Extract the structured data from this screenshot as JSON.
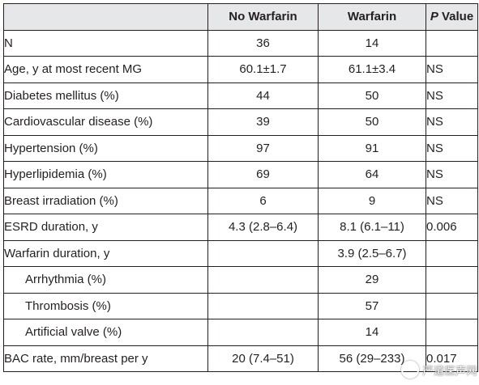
{
  "table": {
    "headers": {
      "col0": "",
      "col1": "No Warfarin",
      "col2": "Warfarin",
      "col3_italic": "P",
      "col3_rest": " Value"
    },
    "rows": [
      {
        "label": "N",
        "no_warfarin": "36",
        "warfarin": "14",
        "p_value": "",
        "indent": false
      },
      {
        "label": "Age, y at most recent MG",
        "no_warfarin": "60.1±1.7",
        "warfarin": "61.1±3.4",
        "p_value": "NS",
        "indent": false
      },
      {
        "label": "Diabetes mellitus (%)",
        "no_warfarin": "44",
        "warfarin": "50",
        "p_value": "NS",
        "indent": false
      },
      {
        "label": "Cardiovascular disease (%)",
        "no_warfarin": "39",
        "warfarin": "50",
        "p_value": "NS",
        "indent": false
      },
      {
        "label": "Hypertension (%)",
        "no_warfarin": "97",
        "warfarin": "91",
        "p_value": "NS",
        "indent": false
      },
      {
        "label": "Hyperlipidemia (%)",
        "no_warfarin": "69",
        "warfarin": "64",
        "p_value": "NS",
        "indent": false
      },
      {
        "label": "Breast irradiation (%)",
        "no_warfarin": "6",
        "warfarin": "9",
        "p_value": "NS",
        "indent": false
      },
      {
        "label": "ESRD duration, y",
        "no_warfarin": "4.3 (2.8–6.4)",
        "warfarin": "8.1 (6.1–11)",
        "p_value": "0.006",
        "indent": false
      },
      {
        "label": "Warfarin duration, y",
        "no_warfarin": "",
        "warfarin": "3.9 (2.5–6.7)",
        "p_value": "",
        "indent": false
      },
      {
        "label": "Arrhythmia (%)",
        "no_warfarin": "",
        "warfarin": "29",
        "p_value": "",
        "indent": true
      },
      {
        "label": "Thrombosis (%)",
        "no_warfarin": "",
        "warfarin": "57",
        "p_value": "",
        "indent": true
      },
      {
        "label": "Artificial valve (%)",
        "no_warfarin": "",
        "warfarin": "14",
        "p_value": "",
        "indent": true
      },
      {
        "label": "BAC rate, mm/breast per y",
        "no_warfarin": "20 (7.4–51)",
        "warfarin": "56 (29–233)",
        "p_value": "0.017",
        "indent": false
      }
    ]
  },
  "watermark": {
    "text": "严道医声网"
  },
  "colors": {
    "header_bg": "#e6e7e8",
    "border": "#231f20",
    "text": "#231f20"
  }
}
